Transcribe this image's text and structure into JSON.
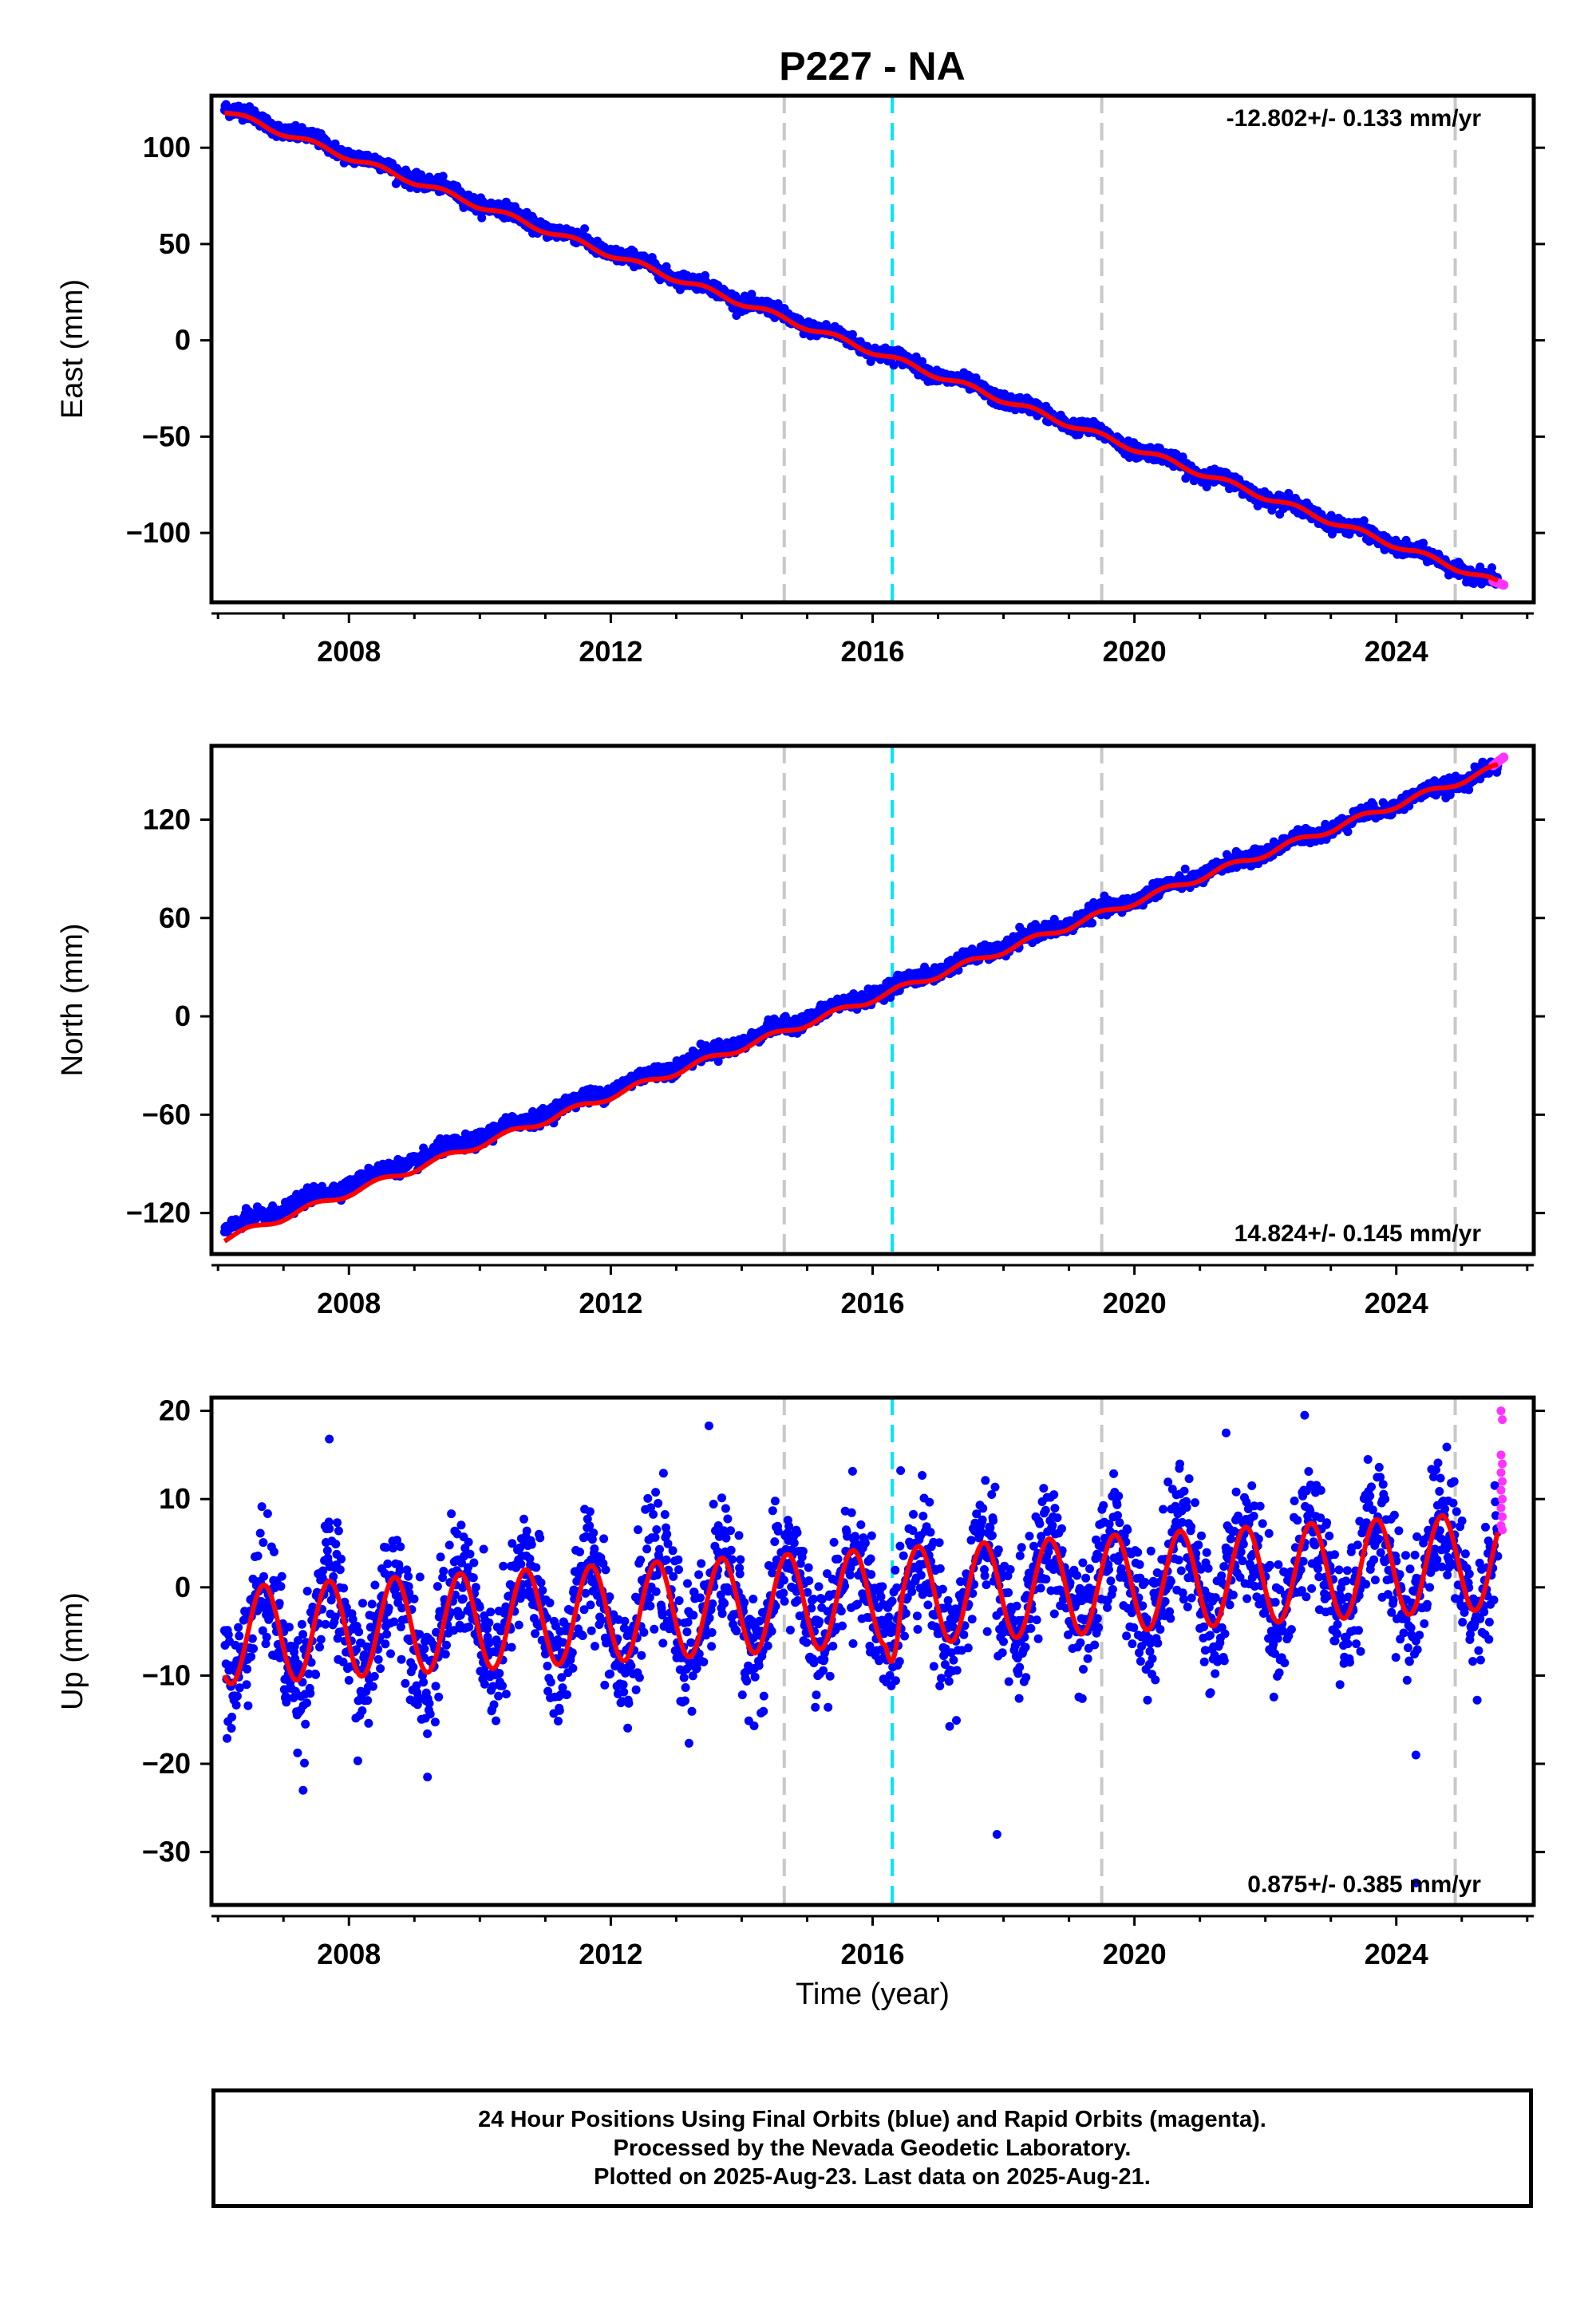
{
  "title": "P227 - NA",
  "chart_data": [
    {
      "type": "scatter",
      "component": "East",
      "ylabel": "East (mm)",
      "xlabel": "",
      "ylim": [
        -136,
        127
      ],
      "xlim": [
        2005.9,
        2026.1
      ],
      "yticks": [
        100,
        50,
        0,
        -50,
        -100
      ],
      "ytick_labels": [
        "100",
        "50",
        "0",
        "−50",
        "−100"
      ],
      "xticks": [
        2008,
        2012,
        2016,
        2020,
        2024
      ],
      "xtick_labels": [
        "2008",
        "2012",
        "2016",
        "2020",
        "2024"
      ],
      "rate_label": "-12.802+/- 0.133 mm/yr",
      "rate_position": "top-right",
      "series": [
        {
          "name": "Final Orbits",
          "color": "#0000ff",
          "start_year": 2006.1,
          "end_year": 2025.55,
          "start_value": 121,
          "end_value": -126,
          "noise_mm": 1.8
        },
        {
          "name": "Rapid Orbits",
          "color": "#ff33ff",
          "start_year": 2025.48,
          "end_year": 2025.64,
          "start_value": -125,
          "end_value": -127
        }
      ],
      "model": {
        "color": "#ff0000",
        "start_value": 119,
        "end_value": -126,
        "seasonal_amplitude_mm": 1.5
      }
    },
    {
      "type": "scatter",
      "component": "North",
      "ylabel": "North (mm)",
      "xlabel": "",
      "ylim": [
        -145,
        165
      ],
      "xlim": [
        2005.9,
        2026.1
      ],
      "yticks": [
        120,
        60,
        0,
        -60,
        -120
      ],
      "ytick_labels": [
        "120",
        "60",
        "0",
        "−60",
        "−120"
      ],
      "xticks": [
        2008,
        2012,
        2016,
        2020,
        2024
      ],
      "xtick_labels": [
        "2008",
        "2012",
        "2016",
        "2020",
        "2024"
      ],
      "rate_label": "14.824+/- 0.145 mm/yr",
      "rate_position": "bottom-right",
      "series": [
        {
          "name": "Final Orbits",
          "color": "#0000ff",
          "start_year": 2006.1,
          "end_year": 2025.55,
          "start_value": -130,
          "end_value": 152,
          "noise_mm": 2.2
        },
        {
          "name": "Rapid Orbits",
          "color": "#ff33ff",
          "start_year": 2025.48,
          "end_year": 2025.64,
          "start_value": 153,
          "end_value": 158
        }
      ],
      "model": {
        "color": "#ff0000",
        "start_value": -136,
        "end_value": 152,
        "seasonal_amplitude_mm": 2.0
      }
    },
    {
      "type": "scatter",
      "component": "Up",
      "ylabel": "Up (mm)",
      "xlabel": "Time (year)",
      "ylim": [
        -36,
        21.5
      ],
      "xlim": [
        2005.9,
        2026.1
      ],
      "yticks": [
        20,
        10,
        0,
        -10,
        -20,
        -30
      ],
      "ytick_labels": [
        "20",
        "10",
        "0",
        "−10",
        "−20",
        "−30"
      ],
      "xticks": [
        2008,
        2012,
        2016,
        2020,
        2024
      ],
      "xtick_labels": [
        "2008",
        "2012",
        "2016",
        "2020",
        "2024"
      ],
      "rate_label": "0.875+/- 0.385 mm/yr",
      "rate_position": "bottom-right",
      "series": [
        {
          "name": "Final Orbits",
          "color": "#0000ff",
          "start_year": 2006.1,
          "end_year": 2025.55,
          "noise_mm": 3.5
        },
        {
          "name": "Rapid Orbits",
          "color": "#ff33ff",
          "values_mm": [
            20,
            19,
            15,
            14,
            13,
            12,
            11,
            10,
            9,
            8,
            7,
            6.5
          ]
        }
      ],
      "outliers": [
        [
          2007.3,
          -23
        ],
        [
          2007.7,
          16.8
        ],
        [
          2009.2,
          -21.5
        ],
        [
          2013.5,
          18.3
        ],
        [
          2017.9,
          -28
        ],
        [
          2021.4,
          17.5
        ],
        [
          2022.6,
          19.5
        ],
        [
          2024.3,
          -19
        ],
        [
          2024.3,
          -33.5
        ]
      ],
      "model": {
        "color": "#ff0000",
        "seasonal_amplitude_mm": 5.5,
        "offset_start_mm": -5.5,
        "offset_end_mm": 3.0
      }
    }
  ],
  "event_lines": [
    {
      "year": 2014.65,
      "color": "#c8c8c8",
      "style": "dashed"
    },
    {
      "year": 2016.3,
      "color": "#00e5ff",
      "style": "dashed"
    },
    {
      "year": 2019.5,
      "color": "#c8c8c8",
      "style": "dashed"
    },
    {
      "year": 2024.9,
      "color": "#c8c8c8",
      "style": "dashed"
    }
  ],
  "footer": {
    "line1": "24 Hour Positions Using Final Orbits (blue) and Rapid Orbits (magenta).",
    "line2": "Processed by the Nevada Geodetic Laboratory.",
    "line3": "Plotted on 2025-Aug-23. Last data on 2025-Aug-21."
  }
}
